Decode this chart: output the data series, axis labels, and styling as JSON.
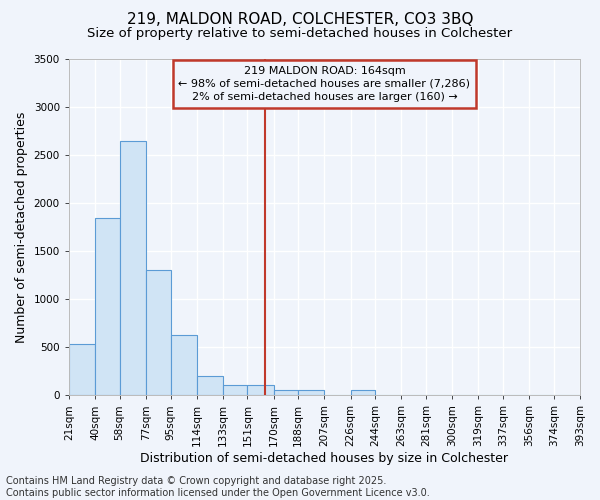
{
  "title1": "219, MALDON ROAD, COLCHESTER, CO3 3BQ",
  "title2": "Size of property relative to semi-detached houses in Colchester",
  "xlabel": "Distribution of semi-detached houses by size in Colchester",
  "ylabel": "Number of semi-detached properties",
  "footnote": "Contains HM Land Registry data © Crown copyright and database right 2025.\nContains public sector information licensed under the Open Government Licence v3.0.",
  "bin_labels": [
    "21sqm",
    "40sqm",
    "58sqm",
    "77sqm",
    "95sqm",
    "114sqm",
    "133sqm",
    "151sqm",
    "170sqm",
    "188sqm",
    "207sqm",
    "226sqm",
    "244sqm",
    "263sqm",
    "281sqm",
    "300sqm",
    "319sqm",
    "337sqm",
    "356sqm",
    "374sqm",
    "393sqm"
  ],
  "bin_edges": [
    21,
    40,
    58,
    77,
    95,
    114,
    133,
    151,
    170,
    188,
    207,
    226,
    244,
    263,
    281,
    300,
    319,
    337,
    356,
    374,
    393
  ],
  "bar_heights": [
    530,
    1850,
    2650,
    1300,
    630,
    200,
    110,
    110,
    55,
    50,
    0,
    50,
    0,
    0,
    0,
    0,
    0,
    0,
    0,
    0
  ],
  "bar_color": "#d0e4f5",
  "bar_edgecolor": "#5b9bd5",
  "property_size": 164,
  "vline_color": "#c0392b",
  "annotation_line1": "219 MALDON ROAD: 164sqm",
  "annotation_line2": "← 98% of semi-detached houses are smaller (7,286)",
  "annotation_line3": "2% of semi-detached houses are larger (160) →",
  "annotation_box_color": "#c0392b",
  "ylim": [
    0,
    3500
  ],
  "yticks": [
    0,
    500,
    1000,
    1500,
    2000,
    2500,
    3000,
    3500
  ],
  "bg_color": "#f0f4fb",
  "grid_color": "#ffffff",
  "title_fontsize": 11,
  "subtitle_fontsize": 9.5,
  "axis_label_fontsize": 9,
  "tick_fontsize": 7.5,
  "footnote_fontsize": 7,
  "ann_fontsize": 8
}
